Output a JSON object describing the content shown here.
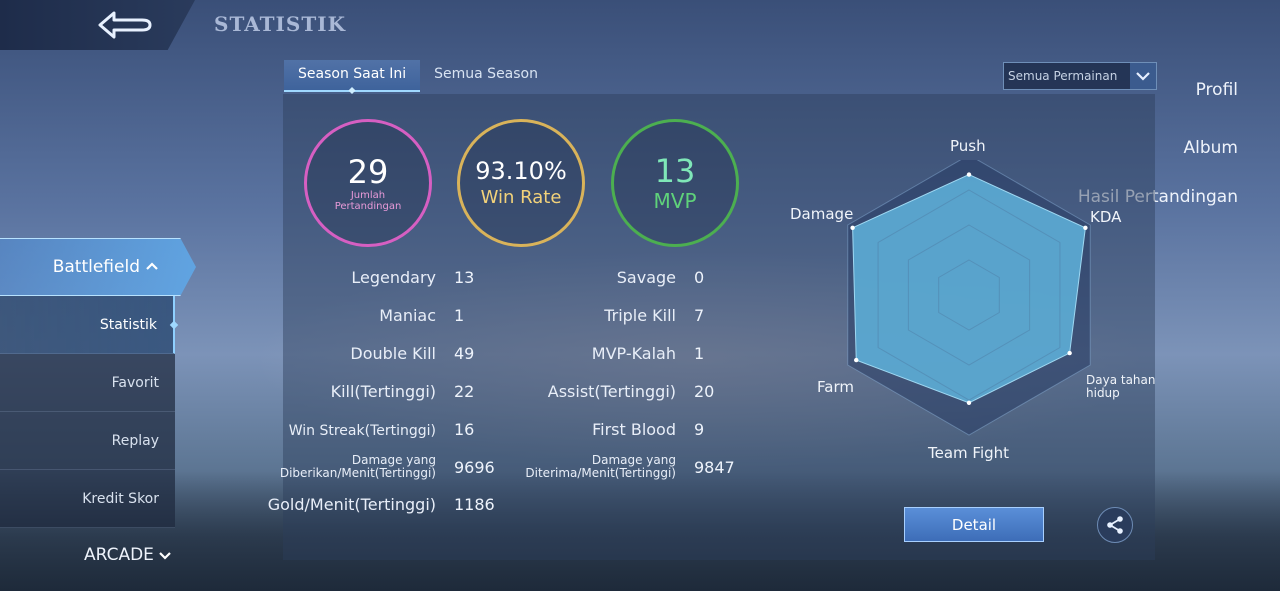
{
  "header": {
    "title": "STATISTIK",
    "back_icon": "back-arrow-icon"
  },
  "sidebar": {
    "items": [
      {
        "label": "Profil"
      },
      {
        "label": "Album"
      },
      {
        "label": "Hasil Pertandingan"
      }
    ],
    "expanded": {
      "label": "Battlefield",
      "icon": "chevron-up-icon"
    },
    "sub_items": [
      {
        "label": "Statistik",
        "active": true
      },
      {
        "label": "Favorit"
      },
      {
        "label": "Replay"
      },
      {
        "label": "Kredit Skor"
      }
    ],
    "arcade": {
      "label": "ARCADE",
      "icon": "chevron-down-icon"
    }
  },
  "tabs": [
    {
      "label": "Season Saat Ini",
      "active": true
    },
    {
      "label": "Semua Season"
    }
  ],
  "filter": {
    "selected": "Semua Permainan",
    "icon": "chevron-down-icon"
  },
  "summary": {
    "matches": {
      "value": "29",
      "label": "Jumlah Pertandingan",
      "color": "#d65fc2"
    },
    "win_rate": {
      "value": "93.10%",
      "label": "Win Rate",
      "color": "#d9b35a"
    },
    "mvp": {
      "value": "13",
      "label": "MVP",
      "color": "#4caf50"
    }
  },
  "stats_left": [
    {
      "label": "Legendary",
      "value": "13"
    },
    {
      "label": "Maniac",
      "value": "1"
    },
    {
      "label": "Double Kill",
      "value": "49"
    },
    {
      "label": "Kill(Tertinggi)",
      "value": "22"
    },
    {
      "label": "Win Streak(Tertinggi)",
      "value": "16"
    },
    {
      "label": "Damage yang Diberikan/Menit(Tertinggi)",
      "value": "9696"
    },
    {
      "label": "Gold/Menit(Tertinggi)",
      "value": "1186"
    }
  ],
  "stats_right": [
    {
      "label": "Savage",
      "value": "0"
    },
    {
      "label": "Triple Kill",
      "value": "7"
    },
    {
      "label": "MVP-Kalah",
      "value": "1"
    },
    {
      "label": "Assist(Tertinggi)",
      "value": "20"
    },
    {
      "label": "First Blood",
      "value": "9"
    },
    {
      "label": "Damage yang Diterima/Menit(Tertinggi)",
      "value": "9847"
    }
  ],
  "radar": {
    "labels": {
      "push": "Push",
      "kda": "KDA",
      "survival": "Daya tahan hidup",
      "teamfight": "Team Fight",
      "farm": "Farm",
      "damage": "Damage"
    },
    "values": {
      "push": 0.86,
      "kda": 0.96,
      "survival": 0.83,
      "teamfight": 0.77,
      "farm": 0.93,
      "damage": 0.96
    },
    "fill_color": "#5fb3dc"
  },
  "actions": {
    "detail_label": "Detail",
    "share_icon": "share-icon"
  }
}
